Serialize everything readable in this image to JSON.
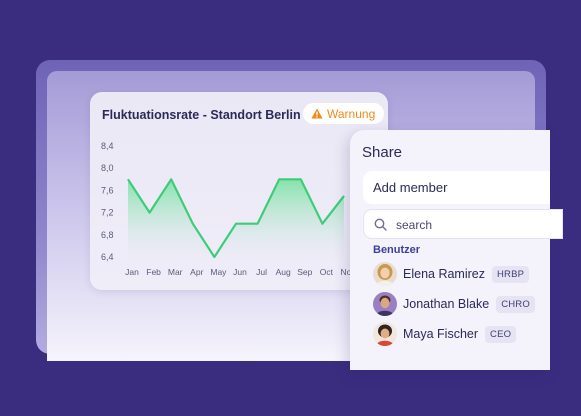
{
  "chart_card": {
    "title": "Fluktuationsrate - Standort Berlin",
    "warning_badge": "Warnung"
  },
  "chart_data": {
    "type": "area",
    "title": "Fluktuationsrate - Standort Berlin",
    "categories": [
      "Jan",
      "Feb",
      "Mar",
      "Apr",
      "May",
      "Jun",
      "Jul",
      "Aug",
      "Sep",
      "Oct",
      "Nov"
    ],
    "yticks": [
      "8,4",
      "8,0",
      "7,6",
      "7,2",
      "6,8",
      "6,4"
    ],
    "ylim": [
      6.4,
      8.4
    ],
    "values": [
      7.8,
      7.2,
      7.8,
      7.0,
      6.4,
      7.0,
      7.0,
      7.8,
      7.8,
      7.0,
      7.5
    ],
    "xlabel": "",
    "ylabel": "",
    "grid": false,
    "colors": {
      "line": "#3dcc78",
      "fill_top": "#7fe3a6",
      "fill_bottom": "#ebe8f6"
    }
  },
  "share": {
    "title": "Share",
    "add_member_label": "Add member",
    "search_placeholder": "search",
    "section_label": "Benutzer",
    "members": [
      {
        "name": "Elena Ramirez",
        "role": "HRBP"
      },
      {
        "name": "Jonathan Blake",
        "role": "CHRO"
      },
      {
        "name": "Maya Fischer",
        "role": "CEO"
      }
    ]
  },
  "colors": {
    "background": "#3a2d80",
    "accent_warning": "#ef8a1c",
    "text_dark": "#2b2a57",
    "section_label": "#3f3e9e"
  }
}
